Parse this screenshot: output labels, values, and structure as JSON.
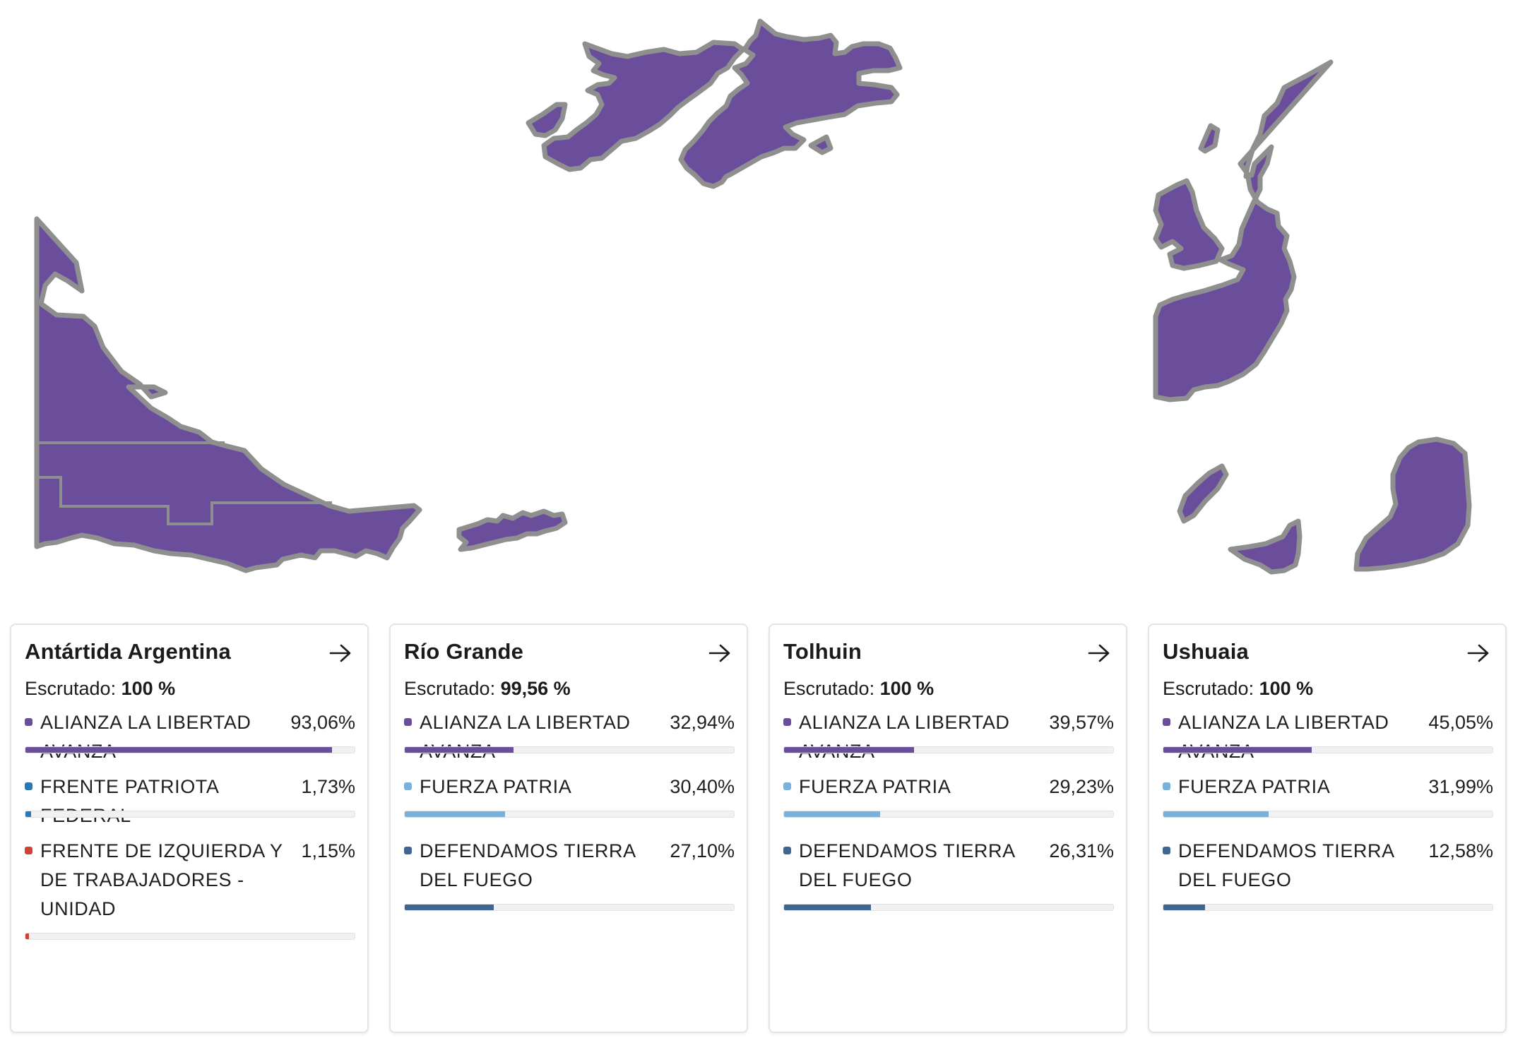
{
  "map": {
    "region_color": "#6a4e9c",
    "border_color": "#8f8f8f"
  },
  "cards": [
    {
      "title": "Antártida Argentina",
      "scrutiny_label": "Escrutado:",
      "scrutiny_value": "100 %",
      "parties": [
        {
          "name": "ALIANZA LA LIBERTAD AVANZA",
          "pct": "93,06%",
          "value": 93.06,
          "color": "#6a4e9c"
        },
        {
          "name": "FRENTE PATRIOTA FEDERAL",
          "pct": "1,73%",
          "value": 1.73,
          "color": "#2a78b4"
        },
        {
          "name": "FRENTE DE IZQUIERDA Y DE TRABAJADORES - UNIDAD",
          "pct": "1,15%",
          "value": 1.15,
          "color": "#d24136"
        }
      ]
    },
    {
      "title": "Río Grande",
      "scrutiny_label": "Escrutado:",
      "scrutiny_value": "99,56 %",
      "parties": [
        {
          "name": "ALIANZA LA LIBERTAD AVANZA",
          "pct": "32,94%",
          "value": 32.94,
          "color": "#6a4e9c"
        },
        {
          "name": "FUERZA PATRIA",
          "pct": "30,40%",
          "value": 30.4,
          "color": "#79b1db"
        },
        {
          "name": "DEFENDAMOS TIERRA DEL FUEGO",
          "pct": "27,10%",
          "value": 27.1,
          "color": "#3f6592"
        }
      ]
    },
    {
      "title": "Tolhuin",
      "scrutiny_label": "Escrutado:",
      "scrutiny_value": "100 %",
      "parties": [
        {
          "name": "ALIANZA LA LIBERTAD AVANZA",
          "pct": "39,57%",
          "value": 39.57,
          "color": "#6a4e9c"
        },
        {
          "name": "FUERZA PATRIA",
          "pct": "29,23%",
          "value": 29.23,
          "color": "#79b1db"
        },
        {
          "name": "DEFENDAMOS TIERRA DEL FUEGO",
          "pct": "26,31%",
          "value": 26.31,
          "color": "#3f6592"
        }
      ]
    },
    {
      "title": "Ushuaia",
      "scrutiny_label": "Escrutado:",
      "scrutiny_value": "100 %",
      "parties": [
        {
          "name": "ALIANZA LA LIBERTAD AVANZA",
          "pct": "45,05%",
          "value": 45.05,
          "color": "#6a4e9c"
        },
        {
          "name": "FUERZA PATRIA",
          "pct": "31,99%",
          "value": 31.99,
          "color": "#79b1db"
        },
        {
          "name": "DEFENDAMOS TIERRA DEL FUEGO",
          "pct": "12,58%",
          "value": 12.58,
          "color": "#3f6592"
        }
      ]
    }
  ]
}
